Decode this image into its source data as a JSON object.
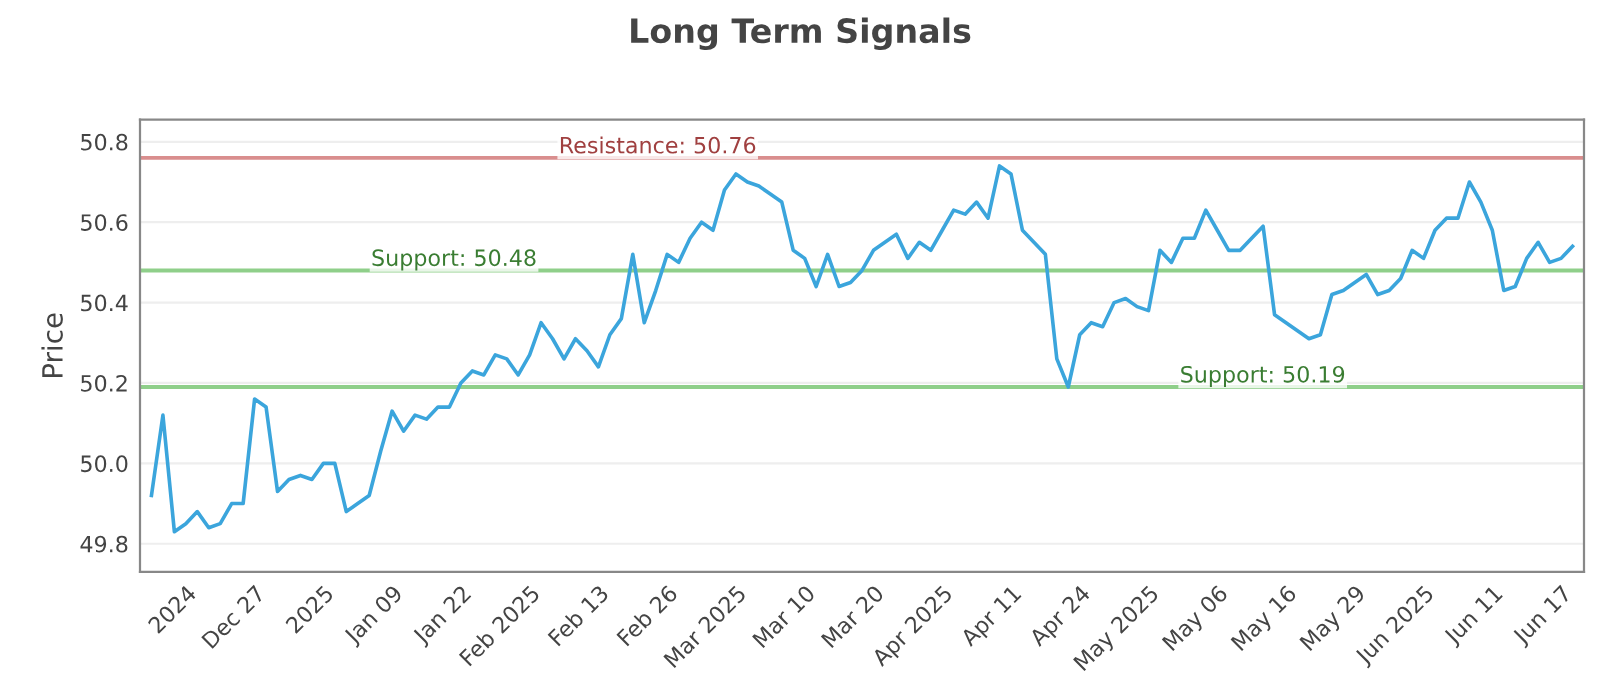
{
  "chart_data": {
    "type": "line",
    "title": "Long Term Signals",
    "ylabel": "Price",
    "categories": [
      null,
      null,
      null,
      "2024",
      null,
      null,
      null,
      null,
      null,
      "Dec 27",
      null,
      null,
      null,
      null,
      null,
      "2025",
      null,
      null,
      null,
      null,
      null,
      "Jan 09",
      null,
      null,
      null,
      null,
      null,
      "Jan 22",
      null,
      null,
      null,
      null,
      null,
      "Feb 2025",
      null,
      null,
      null,
      null,
      null,
      "Feb 13",
      null,
      null,
      null,
      null,
      null,
      "Feb 26",
      null,
      null,
      null,
      null,
      null,
      "Mar 2025",
      null,
      null,
      null,
      null,
      null,
      "Mar 10",
      null,
      null,
      null,
      null,
      null,
      "Mar 20",
      null,
      null,
      null,
      null,
      null,
      "Apr 2025",
      null,
      null,
      null,
      null,
      null,
      "Apr 11",
      null,
      null,
      null,
      null,
      null,
      "Apr 24",
      null,
      null,
      null,
      null,
      null,
      "May 2025",
      null,
      null,
      null,
      null,
      null,
      "May 06",
      null,
      null,
      null,
      null,
      null,
      "May 16",
      null,
      null,
      null,
      null,
      null,
      "May 29",
      null,
      null,
      null,
      null,
      null,
      "Jun 2025",
      null,
      null,
      null,
      null,
      null,
      "Jun 11",
      null,
      null,
      null,
      null,
      null,
      "Jun 17",
      null
    ],
    "series": [
      {
        "color": "#3ba5dc",
        "values": [
          49.92,
          50.12,
          49.83,
          49.85,
          49.88,
          49.84,
          49.85,
          49.9,
          49.9,
          50.16,
          50.14,
          49.93,
          49.96,
          49.97,
          49.96,
          50.0,
          50.0,
          49.88,
          49.9,
          49.92,
          50.03,
          50.13,
          50.08,
          50.12,
          50.11,
          50.14,
          50.14,
          50.2,
          50.23,
          50.22,
          50.27,
          50.26,
          50.22,
          50.27,
          50.35,
          50.31,
          50.26,
          50.31,
          50.28,
          50.24,
          50.32,
          50.36,
          50.52,
          50.35,
          50.43,
          50.52,
          50.5,
          50.56,
          50.6,
          50.58,
          50.68,
          50.72,
          50.7,
          50.69,
          50.67,
          50.65,
          50.53,
          50.51,
          50.44,
          50.52,
          50.44,
          50.45,
          50.48,
          50.53,
          50.55,
          50.57,
          50.51,
          50.55,
          50.53,
          50.58,
          50.63,
          50.62,
          50.65,
          50.61,
          50.74,
          50.72,
          50.58,
          50.55,
          50.52,
          50.26,
          50.19,
          50.32,
          50.35,
          50.34,
          50.4,
          50.41,
          50.39,
          50.38,
          50.53,
          50.5,
          50.56,
          50.56,
          50.63,
          50.58,
          50.53,
          50.53,
          50.56,
          50.59,
          50.37,
          50.35,
          50.33,
          50.31,
          50.32,
          50.42,
          50.43,
          50.45,
          50.47,
          50.42,
          50.43,
          50.46,
          50.53,
          50.51,
          50.58,
          50.61,
          50.61,
          50.7,
          50.65,
          50.58,
          50.43,
          50.44,
          50.51,
          50.55,
          50.5,
          50.51,
          50.54
        ]
      }
    ],
    "ylim": [
      49.73,
      50.855
    ],
    "yticks": [
      49.8,
      {
        "value": 50.0,
        "label": "50.0"
      },
      50.2,
      50.4,
      50.6,
      50.8
    ],
    "grid": "y",
    "legend": false,
    "marker": "none",
    "line_style": "solid",
    "ref_lines": [
      {
        "axis": "y",
        "value": 50.76,
        "label": "Resistance: 50.76",
        "color": "#d98e8e"
      },
      {
        "axis": "y",
        "value": 50.48,
        "label": "Support: 50.48",
        "color": "#8fcf8a"
      },
      {
        "axis": "y",
        "value": 50.19,
        "label": "Support: 50.19",
        "color": "#8fcf8a"
      }
    ]
  }
}
